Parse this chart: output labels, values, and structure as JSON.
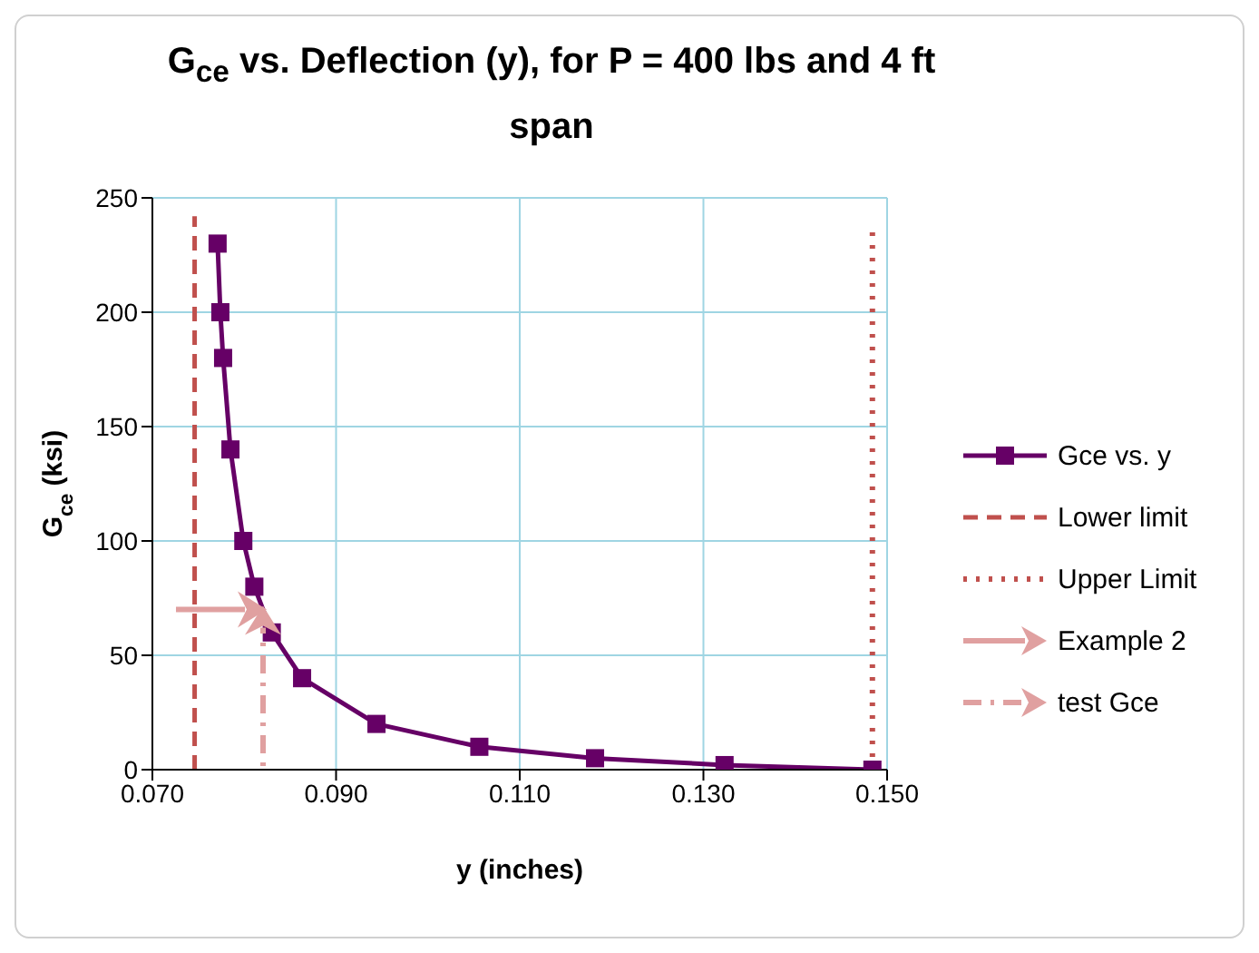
{
  "chart_data": {
    "type": "line",
    "title": "G$_{ce}$ vs. Deflection (y), for P = 400 lbs and 4 ft span",
    "xlabel": "y   (inches)",
    "ylabel": "G$_{ce}$  (ksi)",
    "xlim": [
      0.07,
      0.15
    ],
    "xticks": [
      {
        "value": 0.07,
        "label": "0.070"
      },
      {
        "value": 0.09,
        "label": "0.090"
      },
      {
        "value": 0.11,
        "label": "0.110"
      },
      {
        "value": 0.13,
        "label": "0.130"
      },
      {
        "value": 0.15,
        "label": "0.150"
      }
    ],
    "ylim": [
      0,
      250
    ],
    "yticks": [
      0,
      50,
      100,
      150,
      200,
      250
    ],
    "grid": true,
    "legend": "right",
    "series": [
      {
        "name": "Gce vs. y",
        "color": "#660066",
        "marker": "square",
        "line_style": "solid",
        "x": [
          0.0771,
          0.0774,
          0.0777,
          0.0785,
          0.0799,
          0.0811,
          0.083,
          0.0863,
          0.0944,
          0.1056,
          0.1182,
          0.1323,
          0.1484
        ],
        "values": [
          230,
          200,
          180,
          140,
          100,
          80,
          60,
          40,
          20,
          10,
          5,
          2,
          0
        ]
      },
      {
        "name": "Lower limit",
        "color": "#c0504d",
        "marker": "none",
        "line_style": "dashed",
        "x": [
          0.0746,
          0.0746
        ],
        "values": [
          0,
          242
        ]
      },
      {
        "name": "Upper Limit",
        "color": "#c0504d",
        "marker": "none",
        "line_style": "dotted",
        "x": [
          0.1484,
          0.1484
        ],
        "values": [
          0,
          235
        ]
      }
    ],
    "annotations": [
      "Example 2",
      "test Gce"
    ]
  }
}
